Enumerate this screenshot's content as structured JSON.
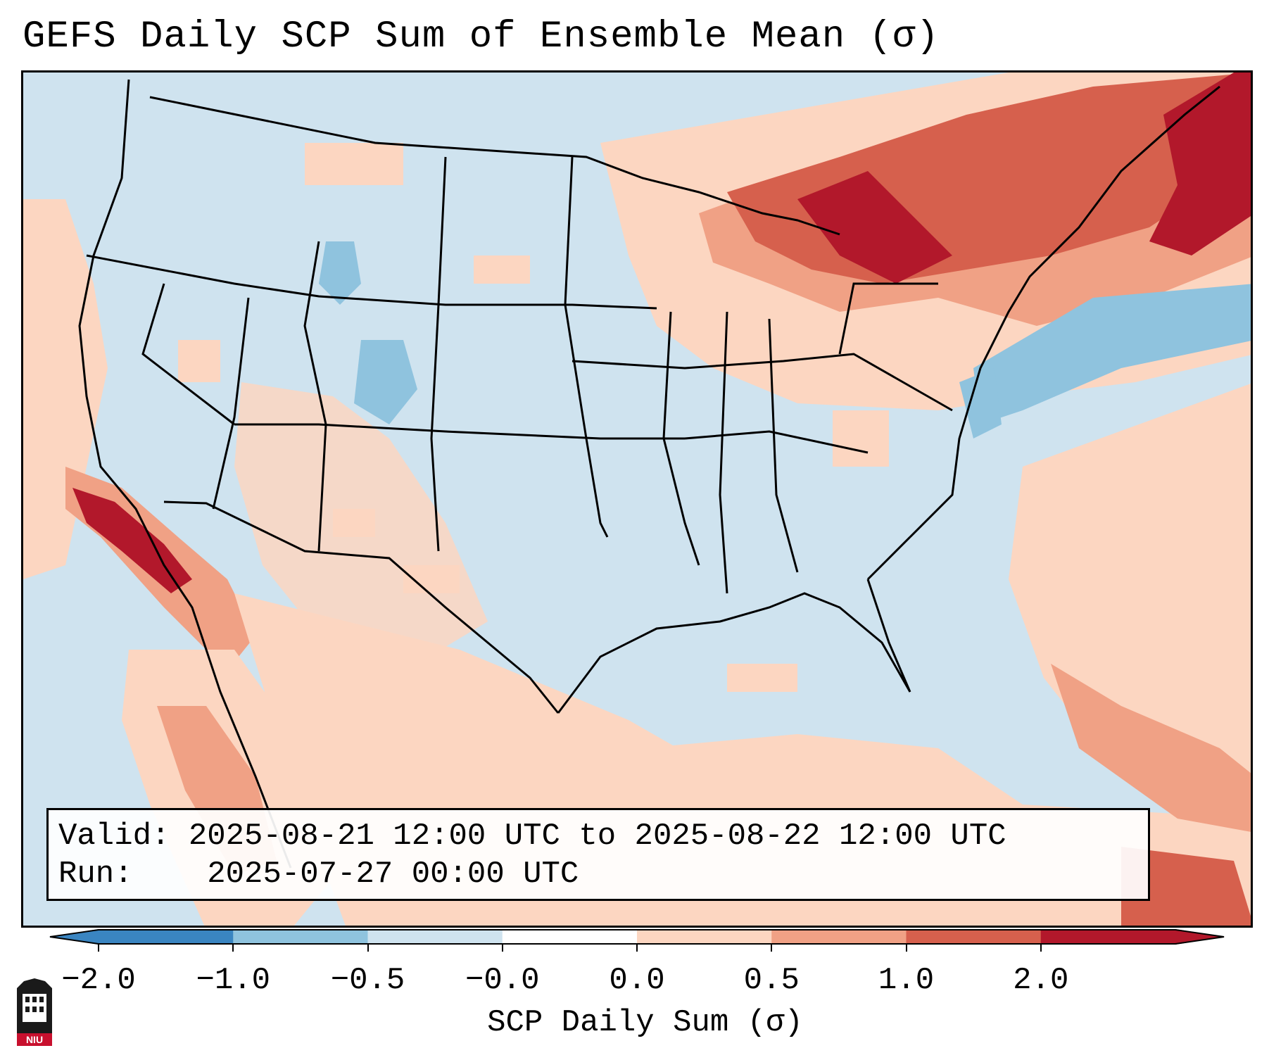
{
  "title": "GEFS Daily SCP Sum of Ensemble Mean (σ)",
  "info": {
    "valid_label": "Valid:",
    "valid_value": "2025-08-21 12:00 UTC to 2025-08-22 12:00 UTC",
    "run_label": "Run:",
    "run_value": "2025-07-27 00:00 UTC"
  },
  "colorbar": {
    "label": "SCP Daily Sum (σ)",
    "ticks": [
      "−2.0",
      "−1.0",
      "−0.5",
      "−0.0",
      "0.0",
      "0.5",
      "1.0",
      "2.0"
    ],
    "colors": [
      "#3a85c1",
      "#8fc3de",
      "#cfe3ef",
      "#ffffff",
      "#fcd6c1",
      "#f0a185",
      "#d6604d",
      "#b2182b"
    ]
  },
  "logo": {
    "text": "NIU"
  },
  "map": {
    "background_color": "#cfe3ef",
    "land_labels": []
  }
}
